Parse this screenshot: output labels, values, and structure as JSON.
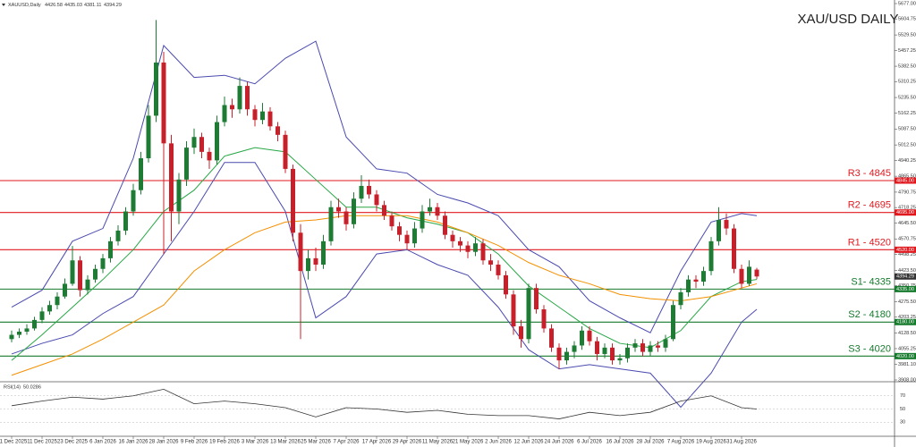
{
  "chart_data": {
    "type": "candlestick",
    "symbol": "XAUUSD,Daily",
    "title": "XAU/USD DAILY",
    "up_color": "#1e7b34",
    "down_color": "#c8202a",
    "categories": [
      "1 Dec 2025",
      null,
      null,
      null,
      "11 Dec 2025",
      null,
      null,
      null,
      "23 Dec 2025",
      null,
      null,
      null,
      "6 Jan 2026",
      null,
      null,
      null,
      "16 Jan 2026",
      null,
      null,
      null,
      "28 Jan 2026",
      null,
      null,
      null,
      "9 Feb 2026",
      null,
      null,
      null,
      "19 Feb 2026",
      null,
      null,
      null,
      "3 Mar 2026",
      null,
      null,
      null,
      "13 Mar 2026",
      null,
      null,
      null,
      "25 Mar 2026",
      null,
      null,
      null,
      "7 Apr 2026",
      null,
      null,
      null,
      "17 Apr 2026",
      null,
      null,
      null,
      "29 Apr 2026",
      null,
      null,
      null,
      "11 May 2026",
      null,
      null,
      null,
      "21 May 2026",
      null,
      null,
      null,
      "2 Jun 2026",
      null,
      null,
      null,
      "12 Jun 2026",
      null,
      null,
      null,
      "24 Jun 2026",
      null,
      null,
      null,
      "6 Jul 2026",
      null,
      null,
      null,
      "16 Jul 2026",
      null,
      null,
      null,
      "28 Jul 2026",
      null,
      null,
      null,
      "7 Aug 2026",
      null,
      null,
      null,
      "19 Aug 2026",
      null,
      null,
      null,
      "31 Aug 2026",
      null,
      null
    ],
    "ohlc": [
      [
        4100,
        4140,
        4085,
        4120
      ],
      [
        4120,
        4150,
        4105,
        4135
      ],
      [
        4135,
        4170,
        4120,
        4150
      ],
      [
        4150,
        4205,
        4140,
        4190
      ],
      [
        4190,
        4250,
        4175,
        4230
      ],
      [
        4230,
        4280,
        4215,
        4260
      ],
      [
        4260,
        4320,
        4240,
        4300
      ],
      [
        4300,
        4385,
        4290,
        4360
      ],
      [
        4360,
        4538,
        4350,
        4470
      ],
      [
        4470,
        4490,
        4300,
        4330
      ],
      [
        4330,
        4400,
        4310,
        4380
      ],
      [
        4380,
        4450,
        4365,
        4430
      ],
      [
        4430,
        4500,
        4410,
        4480
      ],
      [
        4480,
        4580,
        4460,
        4560
      ],
      [
        4560,
        4635,
        4540,
        4610
      ],
      [
        4610,
        4720,
        4590,
        4700
      ],
      [
        4700,
        4830,
        4680,
        4800
      ],
      [
        4800,
        4980,
        4780,
        4950
      ],
      [
        4950,
        5200,
        4930,
        5150
      ],
      [
        5150,
        5600,
        5120,
        5400
      ],
      [
        5400,
        5450,
        4500,
        5020
      ],
      [
        5020,
        5060,
        4560,
        4700
      ],
      [
        4700,
        4880,
        4640,
        4850
      ],
      [
        4850,
        5030,
        4820,
        5000
      ],
      [
        5000,
        5090,
        4970,
        5050
      ],
      [
        5050,
        5070,
        4950,
        4980
      ],
      [
        4980,
        5000,
        4900,
        4940
      ],
      [
        4940,
        5150,
        4920,
        5120
      ],
      [
        5120,
        5240,
        5100,
        5200
      ],
      [
        5200,
        5230,
        5140,
        5180
      ],
      [
        5180,
        5330,
        5160,
        5290
      ],
      [
        5290,
        5310,
        5150,
        5180
      ],
      [
        5180,
        5200,
        5100,
        5130
      ],
      [
        5130,
        5210,
        5110,
        5170
      ],
      [
        5170,
        5190,
        5080,
        5100
      ],
      [
        5100,
        5120,
        5030,
        5060
      ],
      [
        5060,
        5080,
        4880,
        4900
      ],
      [
        4900,
        4920,
        4560,
        4600
      ],
      [
        4600,
        4640,
        4100,
        4420
      ],
      [
        4420,
        4520,
        4380,
        4480
      ],
      [
        4480,
        4530,
        4420,
        4450
      ],
      [
        4450,
        4590,
        4430,
        4560
      ],
      [
        4560,
        4750,
        4540,
        4720
      ],
      [
        4720,
        4760,
        4670,
        4700
      ],
      [
        4700,
        4720,
        4610,
        4640
      ],
      [
        4640,
        4790,
        4620,
        4760
      ],
      [
        4760,
        4870,
        4740,
        4820
      ],
      [
        4820,
        4850,
        4760,
        4780
      ],
      [
        4780,
        4800,
        4700,
        4730
      ],
      [
        4730,
        4750,
        4660,
        4680
      ],
      [
        4680,
        4700,
        4610,
        4630
      ],
      [
        4630,
        4650,
        4560,
        4590
      ],
      [
        4590,
        4610,
        4520,
        4550
      ],
      [
        4550,
        4650,
        4530,
        4620
      ],
      [
        4620,
        4730,
        4600,
        4700
      ],
      [
        4700,
        4760,
        4680,
        4720
      ],
      [
        4720,
        4740,
        4660,
        4680
      ],
      [
        4680,
        4700,
        4570,
        4590
      ],
      [
        4590,
        4610,
        4530,
        4560
      ],
      [
        4560,
        4580,
        4510,
        4540
      ],
      [
        4540,
        4560,
        4480,
        4510
      ],
      [
        4510,
        4580,
        4490,
        4550
      ],
      [
        4550,
        4570,
        4450,
        4470
      ],
      [
        4470,
        4500,
        4420,
        4450
      ],
      [
        4450,
        4470,
        4380,
        4400
      ],
      [
        4400,
        4420,
        4290,
        4310
      ],
      [
        4310,
        4330,
        4120,
        4160
      ],
      [
        4160,
        4190,
        4060,
        4100
      ],
      [
        4100,
        4360,
        4080,
        4340
      ],
      [
        4340,
        4360,
        4220,
        4240
      ],
      [
        4240,
        4260,
        4130,
        4150
      ],
      [
        4150,
        4170,
        4040,
        4060
      ],
      [
        4060,
        4080,
        3960,
        4000
      ],
      [
        4000,
        4060,
        3980,
        4040
      ],
      [
        4040,
        4090,
        4010,
        4070
      ],
      [
        4070,
        4160,
        4050,
        4140
      ],
      [
        4140,
        4160,
        4070,
        4090
      ],
      [
        4090,
        4110,
        4000,
        4030
      ],
      [
        4030,
        4080,
        4010,
        4060
      ],
      [
        4060,
        4080,
        3980,
        4000
      ],
      [
        4000,
        4030,
        3980,
        4010
      ],
      [
        4010,
        4080,
        3990,
        4060
      ],
      [
        4060,
        4100,
        4040,
        4080
      ],
      [
        4080,
        4100,
        4020,
        4040
      ],
      [
        4040,
        4090,
        4020,
        4070
      ],
      [
        4070,
        4090,
        4040,
        4060
      ],
      [
        4060,
        4120,
        4040,
        4100
      ],
      [
        4100,
        4280,
        4090,
        4260
      ],
      [
        4260,
        4340,
        4240,
        4320
      ],
      [
        4320,
        4400,
        4300,
        4380
      ],
      [
        4380,
        4400,
        4340,
        4370
      ],
      [
        4370,
        4440,
        4350,
        4420
      ],
      [
        4420,
        4580,
        4400,
        4560
      ],
      [
        4560,
        4720,
        4540,
        4660
      ],
      [
        4660,
        4690,
        4590,
        4620
      ],
      [
        4620,
        4640,
        4410,
        4430
      ],
      [
        4430,
        4450,
        4340,
        4360
      ],
      [
        4360,
        4470,
        4350,
        4440
      ],
      [
        4426.58,
        4435.03,
        4381.11,
        4394.29
      ]
    ],
    "ylim": [
      3908,
      5677
    ],
    "yticks": [
      {
        "value": 5677,
        "label": "5677.00"
      },
      5604.75,
      {
        "value": 5529.5,
        "label": "5529.50"
      },
      5457.25,
      {
        "value": 5382.5,
        "label": "5382.50"
      },
      5310.25,
      {
        "value": 5235.5,
        "label": "5235.50"
      },
      5162.25,
      {
        "value": 5087.5,
        "label": "5087.50"
      },
      {
        "value": 5012.5,
        "label": "5012.50"
      },
      4940.25,
      {
        "value": 4865.5,
        "label": "4865.50"
      },
      4790.75,
      4718.25,
      {
        "value": 4645.5,
        "label": "4645.50"
      },
      4570.75,
      4498.25,
      {
        "value": 4423.5,
        "label": "4423.50"
      },
      4350.75,
      {
        "value": 4275.5,
        "label": "4275.50"
      },
      4203.25,
      {
        "value": 4128.5,
        "label": "4128.50"
      },
      4055.25,
      {
        "value": 3981.1,
        "label": "3981.10"
      },
      {
        "value": 3908,
        "label": "3908.00"
      }
    ],
    "levels": [
      {
        "value": 4845,
        "label": "R3 - 4845",
        "tag": "4845.00",
        "color": "#e0191f"
      },
      {
        "value": 4695,
        "label": "R2 - 4695",
        "tag": "4695.00",
        "color": "#e0191f"
      },
      {
        "value": 4520,
        "label": "R1 - 4520",
        "tag": "4520.00",
        "color": "#e0191f"
      },
      {
        "value": 4335,
        "label": "S1- 4335",
        "tag": "4335.00",
        "color": "#157a2c"
      },
      {
        "value": 4180,
        "label": "S2 - 4180",
        "tag": "4180.00",
        "color": "#157a2c"
      },
      {
        "value": 4020,
        "label": "S3 - 4020",
        "tag": "4020.00",
        "color": "#157a2c"
      }
    ],
    "indicators": {
      "x": [
        0,
        4,
        8,
        12,
        16,
        20,
        24,
        28,
        32,
        36,
        40,
        44,
        48,
        52,
        56,
        60,
        64,
        68,
        72,
        76,
        80,
        84,
        88,
        92,
        96,
        98
      ],
      "series": [
        {
          "color": "#4a4ab0",
          "values": [
            4250,
            4330,
            4560,
            4620,
            4950,
            5480,
            5330,
            5340,
            5300,
            5420,
            5500,
            5050,
            4900,
            4880,
            4780,
            4740,
            4680,
            4520,
            4440,
            4280,
            4200,
            4130,
            4420,
            4650,
            4690,
            4680
          ]
        },
        {
          "color": "#4a4ab0",
          "values": [
            4030,
            4080,
            4120,
            4220,
            4300,
            4500,
            4700,
            4930,
            4930,
            4700,
            4200,
            4300,
            4500,
            4520,
            4450,
            4400,
            4250,
            4050,
            3960,
            3980,
            3960,
            3940,
            3780,
            3940,
            4180,
            4240
          ]
        },
        {
          "color": "#27a745",
          "values": [
            4000,
            4120,
            4250,
            4380,
            4520,
            4700,
            4800,
            4960,
            5000,
            4980,
            4850,
            4720,
            4720,
            4670,
            4640,
            4600,
            4500,
            4350,
            4250,
            4150,
            4080,
            4060,
            4140,
            4300,
            4370,
            4380
          ]
        },
        {
          "color": "#f39000",
          "values": [
            3930,
            3980,
            4030,
            4100,
            4180,
            4260,
            4420,
            4520,
            4600,
            4650,
            4660,
            4680,
            4680,
            4680,
            4650,
            4600,
            4540,
            4460,
            4400,
            4360,
            4310,
            4290,
            4280,
            4300,
            4340,
            4360
          ]
        }
      ]
    },
    "rsi": {
      "label": "RSI(14)",
      "color": "#333333",
      "x": [
        0,
        4,
        8,
        12,
        16,
        20,
        24,
        28,
        32,
        36,
        40,
        44,
        48,
        52,
        56,
        60,
        64,
        68,
        72,
        76,
        80,
        84,
        88,
        92,
        96,
        98
      ],
      "values": [
        55,
        62,
        68,
        65,
        70,
        80,
        58,
        62,
        58,
        52,
        38,
        52,
        50,
        45,
        48,
        42,
        40,
        40,
        35,
        45,
        40,
        45,
        62,
        70,
        52,
        50.0286
      ],
      "ylim": [
        10,
        90
      ],
      "yticks": [
        70,
        50,
        30
      ]
    }
  }
}
